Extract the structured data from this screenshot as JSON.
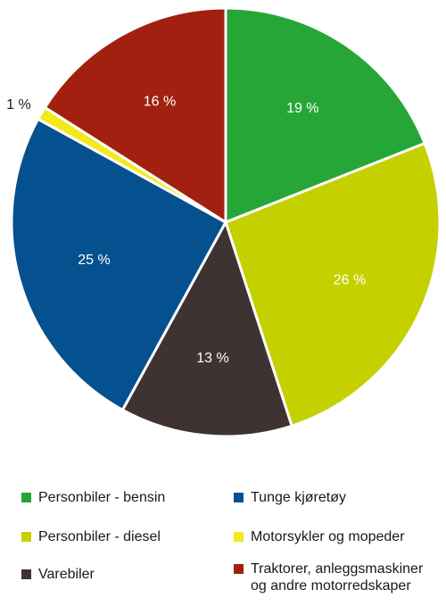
{
  "chart_data": {
    "type": "pie",
    "title": "",
    "slices": [
      {
        "name": "Personbiler - bensin",
        "value": 19,
        "label": "19 %",
        "color": "#27a638"
      },
      {
        "name": "Personbiler - diesel",
        "value": 26,
        "label": "26 %",
        "color": "#c5d000"
      },
      {
        "name": "Varebiler",
        "value": 13,
        "label": "13 %",
        "color": "#3e3232"
      },
      {
        "name": "Tunge kjøretøy",
        "value": 25,
        "label": "25 %",
        "color": "#05508f"
      },
      {
        "name": "Motorsykler og mopeder",
        "value": 1,
        "label": "1 %",
        "color": "#f2ea1c"
      },
      {
        "name": "Traktorer, anleggsmaskiner\nog andre motorredskaper",
        "value": 16,
        "label": "16 %",
        "color": "#a2200f"
      }
    ],
    "legend": {
      "placement": "bottom",
      "entries": [
        {
          "name": "Personbiler - bensin",
          "color": "#27a638"
        },
        {
          "name": "Tunge kjøretøy",
          "color": "#05508f"
        },
        {
          "name": "Personbiler - diesel",
          "color": "#c5d000"
        },
        {
          "name": "Motorsykler og mopeder",
          "color": "#f2ea1c"
        },
        {
          "name": "Varebiler",
          "color": "#3e3232"
        },
        {
          "name": "Traktorer, anleggsmaskiner\nog andre motorredskaper",
          "color": "#a2200f"
        }
      ]
    }
  }
}
